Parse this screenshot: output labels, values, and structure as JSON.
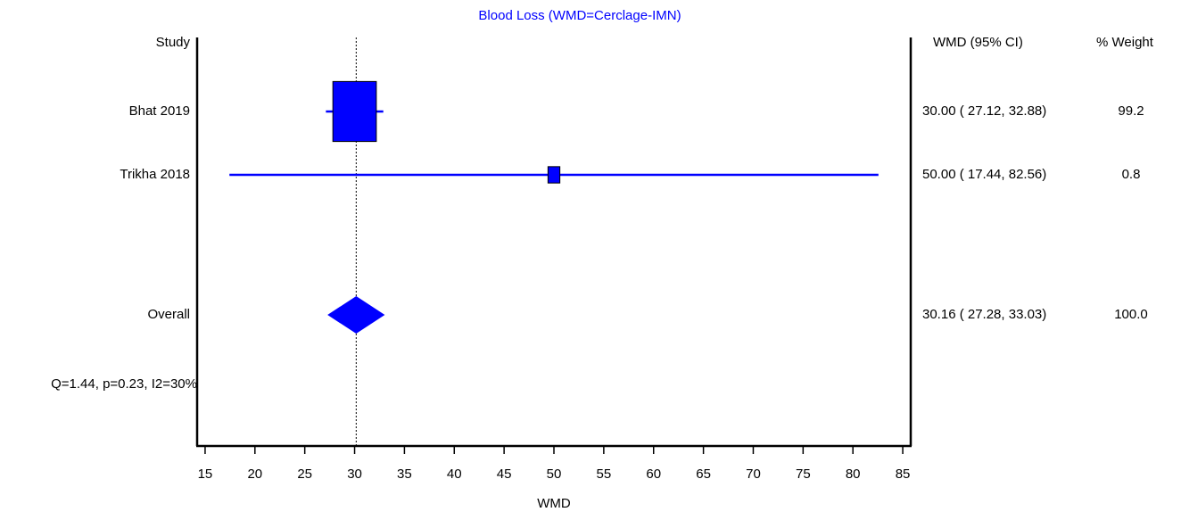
{
  "chart_data": {
    "type": "forest",
    "title": "Blood Loss (WMD=Cerclage-IMN)",
    "xlabel": "WMD",
    "column_headers": {
      "label": "Study",
      "ci": "WMD (95% CI)",
      "weight": "% Weight"
    },
    "categories": [
      "Bhat 2019",
      "Trikha 2018"
    ],
    "values": [
      30,
      50
    ],
    "lower": [
      27.12,
      17.44
    ],
    "upper": [
      32.88,
      82.56
    ],
    "weights": [
      99.2,
      0.8
    ],
    "value_labels": [
      "30.00 ( 27.12, 32.88)",
      "50.00 ( 17.44, 82.56)"
    ],
    "overall": {
      "label": "Overall",
      "value": 30.16,
      "lower": 27.28,
      "upper": 33.03,
      "weight": 100,
      "value_label": "30.16 ( 27.28, 33.03)",
      "weight_label": "100.0"
    },
    "heterogeneity": "Q=1.44, p=0.23, I2=30%",
    "xlim": [
      14.2,
      85.8
    ],
    "xticks": [
      15,
      20,
      25,
      30,
      35,
      40,
      45,
      50,
      55,
      60,
      65,
      70,
      75,
      80,
      85
    ],
    "color": "#0000ff",
    "reference_line": true
  }
}
